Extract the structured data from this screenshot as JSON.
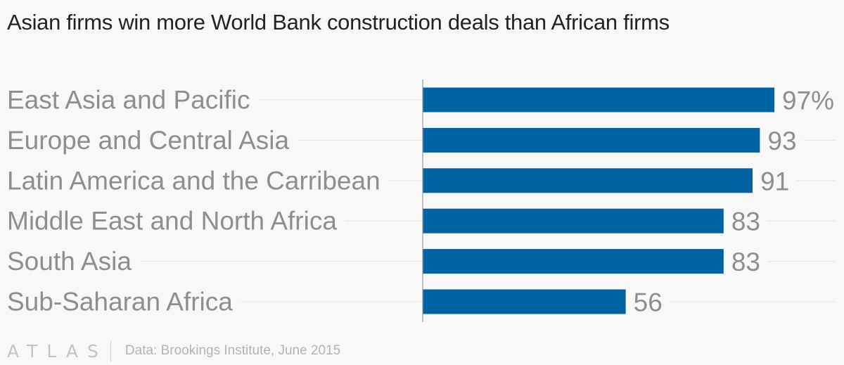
{
  "title": "Asian firms win more World Bank construction deals than African firms",
  "footer": {
    "logo": "ATLAS",
    "source": "Data: Brookings Institute, June 2015"
  },
  "colors": {
    "bar": "#0163a2",
    "label": "#8e8e8e",
    "gridline": "#e6e6e6",
    "axis": "#9a9a9a",
    "background": "#f8f8f8"
  },
  "chart_data": {
    "type": "bar",
    "orientation": "horizontal",
    "categories": [
      "East Asia and Pacific",
      "Europe and Central Asia",
      "Latin America and the Carribean",
      "Middle East and North Africa",
      "South Asia",
      "Sub-Saharan Africa"
    ],
    "values": [
      97,
      93,
      91,
      83,
      83,
      56
    ],
    "value_labels": [
      "97%",
      "93",
      "91",
      "83",
      "83",
      "56"
    ],
    "unit": "%",
    "title": "Asian firms win more World Bank construction deals than African firms",
    "xlim": [
      0,
      100
    ],
    "grid": true
  }
}
